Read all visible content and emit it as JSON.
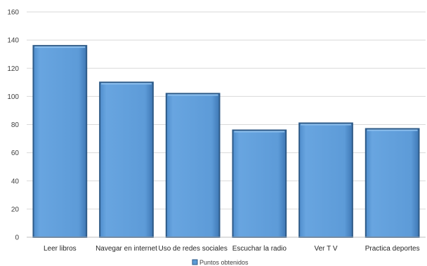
{
  "chart_data": {
    "type": "bar",
    "categories": [
      "Leer libros",
      "Navegar en internet",
      "Uso de redes sociales",
      "Escuchar la radio",
      "Ver T V",
      "Practica deportes"
    ],
    "series": [
      {
        "name": "Puntos obtenidos",
        "values": [
          136,
          110,
          102,
          76,
          81,
          77
        ]
      }
    ],
    "y_ticks": [
      "0",
      "20",
      "40",
      "60",
      "80",
      "100",
      "120",
      "140",
      "160"
    ],
    "ylim": [
      0,
      160
    ],
    "grid": true,
    "legend_position": "bottom",
    "colors": {
      "bar_fill": "#5b9bd5",
      "bar_edge": "#2e5a87",
      "grid": "#d9d9d9"
    }
  }
}
